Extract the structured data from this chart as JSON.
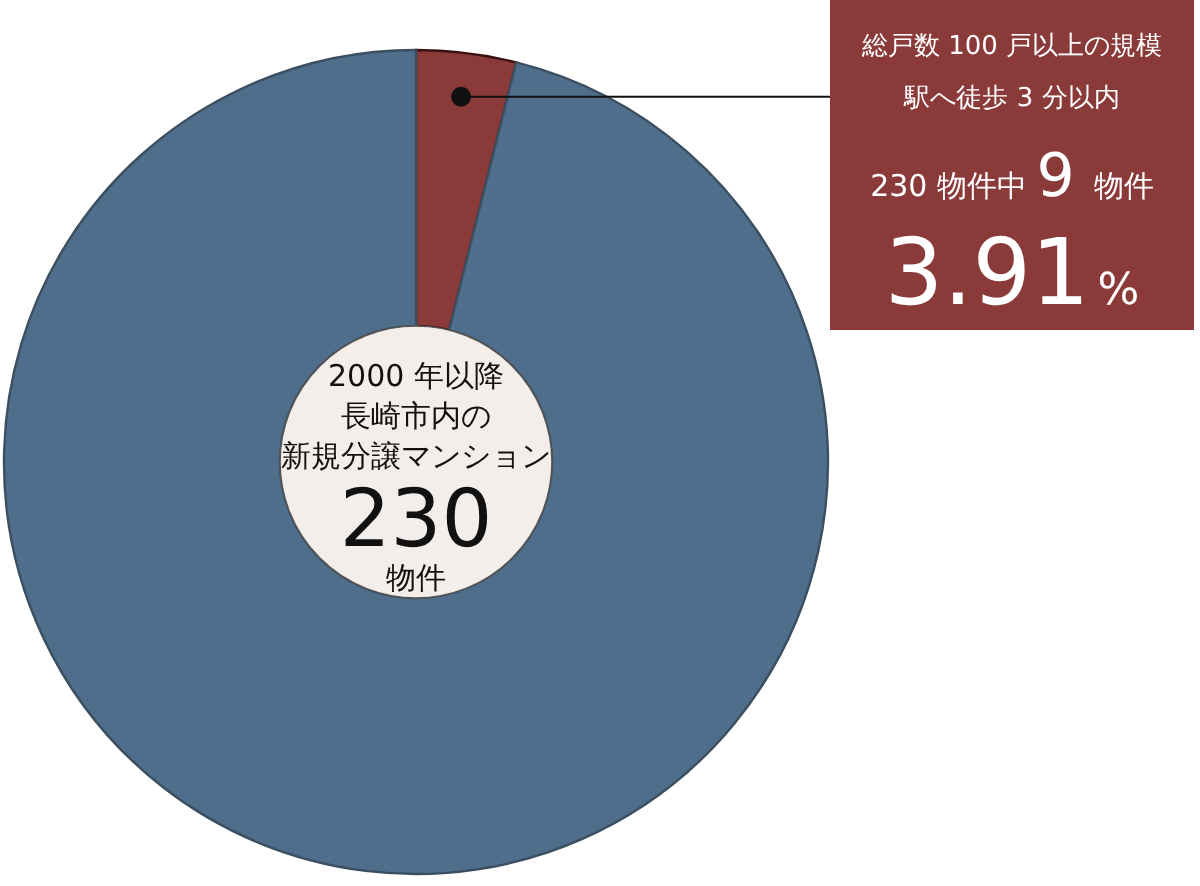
{
  "chart_data": {
    "type": "donut",
    "categories": [
      null,
      null
    ],
    "values": [
      3.91,
      96.09
    ],
    "colors": [
      "#8b3a3a",
      "#4e6e8b"
    ],
    "annotations": [
      "2000 年以降",
      "長崎市内の",
      "新規分譲マンション",
      "230",
      "物件",
      "総戸数 100 戸以上の規模",
      "駅へ徒歩 3 分以内",
      "230 物件中",
      "9",
      "物件",
      "3.91%"
    ]
  }
}
